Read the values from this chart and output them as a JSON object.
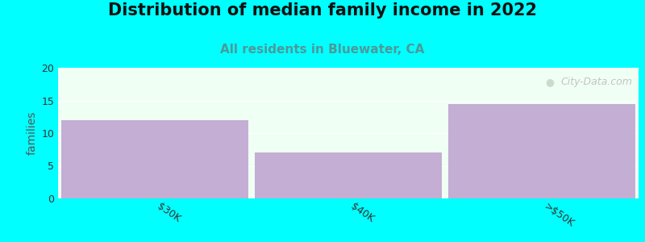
{
  "title": "Distribution of median family income in 2022",
  "subtitle": "All residents in Bluewater, CA",
  "categories": [
    "$30K",
    "$40K",
    ">$50K"
  ],
  "values": [
    12,
    7,
    14.5
  ],
  "bar_color": "#c4aed4",
  "background_color": "#00ffff",
  "plot_bg_color": "#f0fff4",
  "ylabel": "families",
  "ylim": [
    0,
    20
  ],
  "yticks": [
    0,
    5,
    10,
    15,
    20
  ],
  "title_fontsize": 15,
  "subtitle_fontsize": 11,
  "subtitle_color": "#4d9999",
  "watermark": "City-Data.com",
  "bar_width": 0.97,
  "title_color": "#111111"
}
